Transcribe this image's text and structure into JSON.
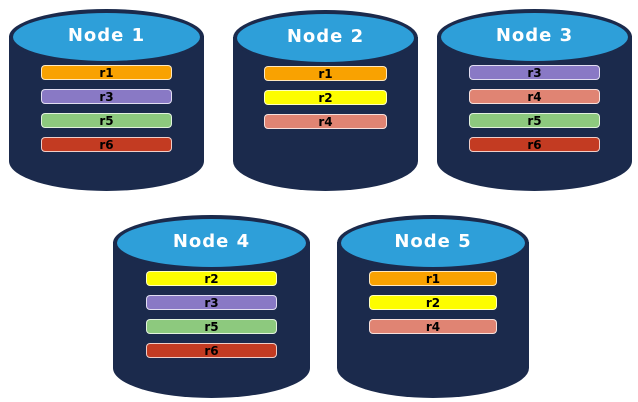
{
  "diagram": {
    "description": "Five database node cylinders showing replica placement",
    "colors": {
      "cylinder_body": "#1b2a4c",
      "cylinder_top": "#2e9fd9",
      "node_label_text": "#ffffff",
      "bar_label_text": "#000000",
      "background": "#ffffff"
    },
    "replica_colors": {
      "r1": "#f9a201",
      "r2": "#fdfd00",
      "r3": "#8979c5",
      "r4": "#e08473",
      "r5": "#8dc97e",
      "r6": "#c33b22"
    },
    "nodes": [
      {
        "label": "Node 1",
        "replicas": [
          "r1",
          "r3",
          "r5",
          "r6"
        ]
      },
      {
        "label": "Node 2",
        "replicas": [
          "r1",
          "r2",
          "r4"
        ]
      },
      {
        "label": "Node 3",
        "replicas": [
          "r3",
          "r4",
          "r5",
          "r6"
        ]
      },
      {
        "label": "Node 4",
        "replicas": [
          "r2",
          "r3",
          "r5",
          "r6"
        ]
      },
      {
        "label": "Node 5",
        "replicas": [
          "r1",
          "r2",
          "r4"
        ]
      }
    ]
  }
}
